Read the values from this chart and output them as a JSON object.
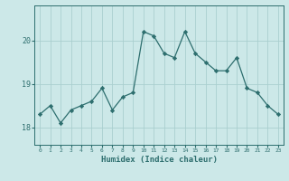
{
  "x": [
    0,
    1,
    2,
    3,
    4,
    5,
    6,
    7,
    8,
    9,
    10,
    11,
    12,
    13,
    14,
    15,
    16,
    17,
    18,
    19,
    20,
    21,
    22,
    23
  ],
  "y": [
    18.3,
    18.5,
    18.1,
    18.4,
    18.5,
    18.6,
    18.9,
    18.4,
    18.7,
    18.8,
    20.2,
    20.1,
    19.7,
    19.6,
    20.2,
    19.7,
    19.5,
    19.3,
    19.3,
    19.6,
    18.9,
    18.8,
    18.5,
    18.3
  ],
  "xlabel": "Humidex (Indice chaleur)",
  "ylabel": "",
  "title": "",
  "line_color": "#2d6e6e",
  "marker_color": "#2d6e6e",
  "bg_color": "#cce8e8",
  "grid_color": "#aacfcf",
  "axis_color": "#2d6e6e",
  "tick_label_color": "#2d6e6e",
  "xlabel_color": "#2d6e6e",
  "yticks": [
    18,
    19,
    20
  ],
  "ylim": [
    17.6,
    20.8
  ],
  "xlim": [
    -0.5,
    23.5
  ]
}
